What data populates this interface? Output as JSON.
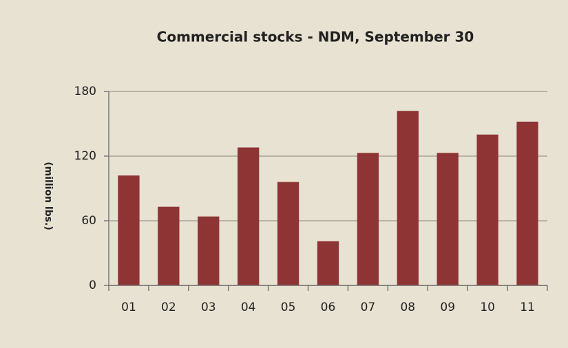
{
  "chart_data": {
    "type": "bar",
    "title": "Commercial stocks - NDM, September 30",
    "y_label": "(million lbs.)",
    "categories": [
      "01",
      "02",
      "03",
      "04",
      "05",
      "06",
      "07",
      "08",
      "09",
      "10",
      "11"
    ],
    "values": [
      102,
      73,
      64,
      128,
      96,
      41,
      123,
      162,
      123,
      140,
      152
    ],
    "color": "#8e3434",
    "ylim": [
      0,
      180
    ],
    "yticks": [
      0,
      60,
      120,
      180
    ],
    "grid": true
  }
}
